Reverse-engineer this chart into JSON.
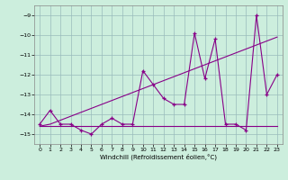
{
  "xlabel": "Windchill (Refroidissement éolien,°C)",
  "x": [
    0,
    1,
    2,
    3,
    4,
    5,
    6,
    7,
    8,
    9,
    10,
    11,
    12,
    13,
    14,
    15,
    16,
    17,
    18,
    19,
    20,
    21,
    22,
    23
  ],
  "y_line": [
    -14.5,
    -13.8,
    -14.5,
    -14.5,
    -14.8,
    -15.0,
    -14.5,
    -14.2,
    -14.5,
    -14.5,
    -11.8,
    -12.5,
    -13.2,
    -13.5,
    -13.5,
    -9.9,
    -12.2,
    -10.2,
    -14.5,
    -14.5,
    -14.8,
    -9.0,
    -13.0,
    -12.0
  ],
  "y_trend": [
    -14.6,
    -14.5,
    -14.3,
    -14.1,
    -13.9,
    -13.7,
    -13.5,
    -13.3,
    -13.1,
    -12.9,
    -12.7,
    -12.5,
    -12.3,
    -12.1,
    -11.9,
    -11.7,
    -11.5,
    -11.3,
    -11.1,
    -10.9,
    -10.7,
    -10.5,
    -10.3,
    -10.1
  ],
  "y_flat": [
    -14.6,
    -14.6,
    -14.6,
    -14.6,
    -14.6,
    -14.6,
    -14.6,
    -14.6,
    -14.6,
    -14.6,
    -14.6,
    -14.6,
    -14.6,
    -14.6,
    -14.6,
    -14.6,
    -14.6,
    -14.6,
    -14.6,
    -14.6,
    -14.6,
    -14.6,
    -14.6,
    -14.6
  ],
  "ylim": [
    -15.5,
    -8.5
  ],
  "xlim": [
    -0.5,
    23.5
  ],
  "yticks": [
    -15,
    -14,
    -13,
    -12,
    -11,
    -10,
    -9
  ],
  "xticks": [
    0,
    1,
    2,
    3,
    4,
    5,
    6,
    7,
    8,
    9,
    10,
    11,
    12,
    13,
    14,
    15,
    16,
    17,
    18,
    19,
    20,
    21,
    22,
    23
  ],
  "line_color": "#880088",
  "bg_color": "#cceedd",
  "grid_color": "#99bbbb"
}
